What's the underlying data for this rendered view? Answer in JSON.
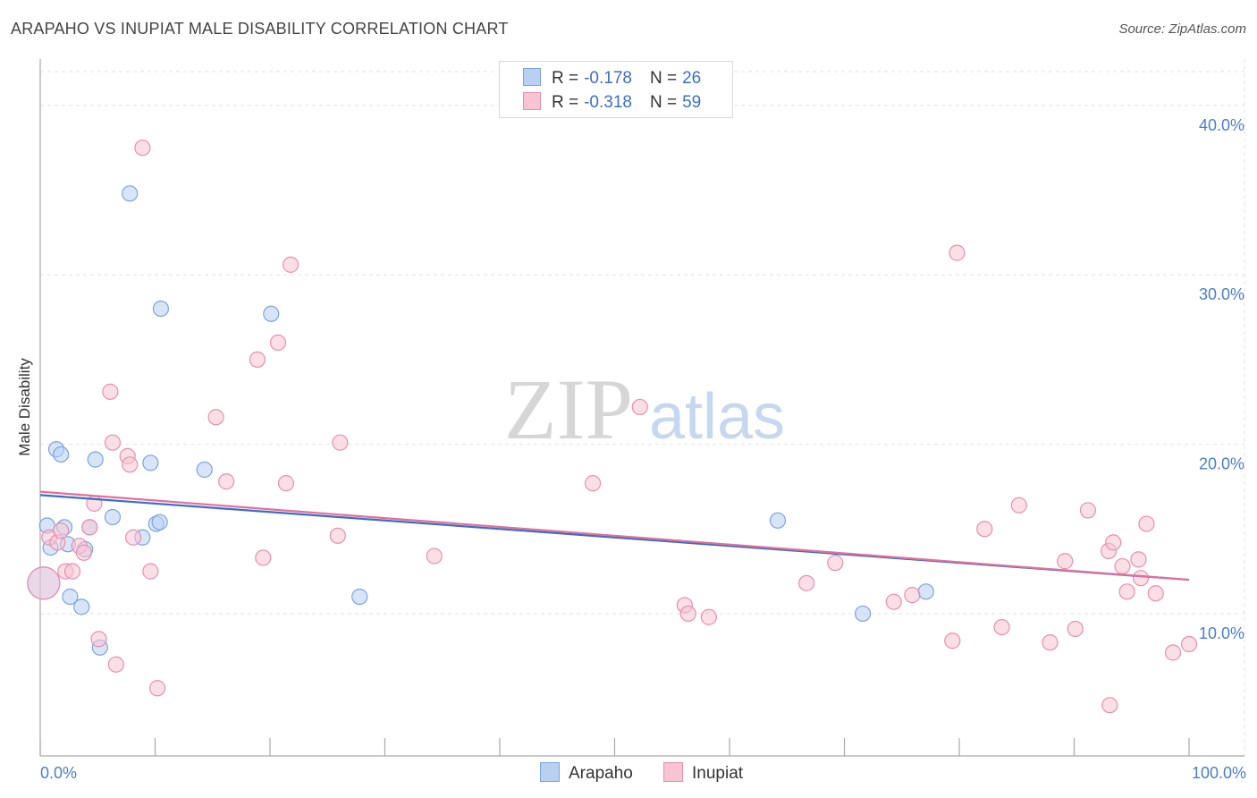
{
  "title": "ARAPAHO VS INUPIAT MALE DISABILITY CORRELATION CHART",
  "source": "Source: ZipAtlas.com",
  "colors": {
    "arapaho_fill": "#b8d0f2",
    "arapaho_stroke": "#7aa4dd",
    "arapaho_line": "#3a6cc8",
    "inupiat_fill": "#f8c4d4",
    "inupiat_stroke": "#e98fac",
    "inupiat_line": "#e0709a",
    "tick": "#4a7ec9"
  },
  "legend": {
    "arapaho": {
      "r_label": "R =",
      "r_value": "-0.178",
      "n_label": "N =",
      "n_value": "26"
    },
    "inupiat": {
      "r_label": "R =",
      "r_value": "-0.318",
      "n_label": "N =",
      "n_value": "59"
    }
  },
  "watermark": {
    "zip": "ZIP",
    "atlas": "atlas"
  },
  "chart_data": {
    "type": "scatter",
    "title": "ARAPAHO VS INUPIAT MALE DISABILITY CORRELATION CHART",
    "xlabel": "",
    "ylabel": "Male Disability",
    "xlim": [
      0,
      100
    ],
    "ylim": [
      1.6,
      42
    ],
    "x_tick_labels": {
      "left": "0.0%",
      "right": "100.0%"
    },
    "y_ticks": [
      {
        "value": 10,
        "label": "10.0%"
      },
      {
        "value": 20,
        "label": "20.0%"
      },
      {
        "value": 30,
        "label": "30.0%"
      },
      {
        "value": 40,
        "label": "40.0%"
      }
    ],
    "grid": true,
    "series": [
      {
        "name": "Arapaho",
        "trend": [
          [
            0,
            17.0
          ],
          [
            100,
            12.0
          ]
        ],
        "points": [
          [
            0.3,
            11.8,
            "big"
          ],
          [
            0.6,
            15.2
          ],
          [
            0.9,
            13.9
          ],
          [
            1.4,
            19.7
          ],
          [
            1.8,
            19.4
          ],
          [
            2.1,
            15.1
          ],
          [
            2.4,
            14.1
          ],
          [
            2.6,
            11.0
          ],
          [
            3.6,
            10.4
          ],
          [
            3.9,
            13.8
          ],
          [
            4.3,
            15.1
          ],
          [
            4.8,
            19.1
          ],
          [
            5.2,
            8.0
          ],
          [
            6.3,
            15.7
          ],
          [
            7.8,
            34.8
          ],
          [
            8.9,
            14.5
          ],
          [
            9.6,
            18.9
          ],
          [
            10.1,
            15.3
          ],
          [
            10.4,
            15.4
          ],
          [
            10.5,
            28.0
          ],
          [
            14.3,
            18.5
          ],
          [
            20.1,
            27.7
          ],
          [
            27.8,
            11.0
          ],
          [
            64.2,
            15.5
          ],
          [
            71.6,
            10.0
          ],
          [
            77.1,
            11.3
          ]
        ]
      },
      {
        "name": "Inupiat",
        "trend": [
          [
            0,
            17.2
          ],
          [
            100,
            12.0
          ]
        ],
        "points": [
          [
            0.3,
            11.8,
            "big"
          ],
          [
            0.8,
            14.5
          ],
          [
            1.5,
            14.2
          ],
          [
            1.8,
            14.9
          ],
          [
            2.2,
            12.5
          ],
          [
            2.8,
            12.5
          ],
          [
            3.4,
            14.0
          ],
          [
            3.8,
            13.6
          ],
          [
            4.3,
            15.1
          ],
          [
            4.7,
            16.5
          ],
          [
            5.1,
            8.5
          ],
          [
            6.1,
            23.1
          ],
          [
            6.3,
            20.1
          ],
          [
            6.6,
            7.0
          ],
          [
            7.6,
            19.3
          ],
          [
            7.8,
            18.8
          ],
          [
            8.1,
            14.5
          ],
          [
            8.9,
            37.5
          ],
          [
            9.6,
            12.5
          ],
          [
            10.2,
            5.6
          ],
          [
            15.3,
            21.6
          ],
          [
            16.2,
            17.8
          ],
          [
            18.9,
            25.0
          ],
          [
            19.4,
            13.3
          ],
          [
            20.7,
            26.0
          ],
          [
            21.4,
            17.7
          ],
          [
            21.8,
            30.6
          ],
          [
            25.9,
            14.6
          ],
          [
            26.1,
            20.1
          ],
          [
            34.3,
            13.4
          ],
          [
            48.1,
            17.7
          ],
          [
            52.2,
            22.2
          ],
          [
            56.1,
            10.5
          ],
          [
            56.4,
            10.0
          ],
          [
            58.2,
            9.8
          ],
          [
            66.7,
            11.8
          ],
          [
            69.2,
            13.0
          ],
          [
            74.3,
            10.7
          ],
          [
            75.9,
            11.1
          ],
          [
            79.4,
            8.4
          ],
          [
            79.8,
            31.3
          ],
          [
            82.2,
            15.0
          ],
          [
            83.7,
            9.2
          ],
          [
            85.2,
            16.4
          ],
          [
            87.9,
            8.3
          ],
          [
            89.2,
            13.1
          ],
          [
            90.1,
            9.1
          ],
          [
            91.2,
            16.1
          ],
          [
            93.0,
            13.7
          ],
          [
            93.1,
            4.6
          ],
          [
            93.4,
            14.2
          ],
          [
            94.2,
            12.8
          ],
          [
            94.6,
            11.3
          ],
          [
            95.6,
            13.2
          ],
          [
            95.8,
            12.1
          ],
          [
            96.3,
            15.3
          ],
          [
            97.1,
            11.2
          ],
          [
            98.6,
            7.7
          ],
          [
            100.0,
            8.2
          ]
        ]
      }
    ]
  }
}
